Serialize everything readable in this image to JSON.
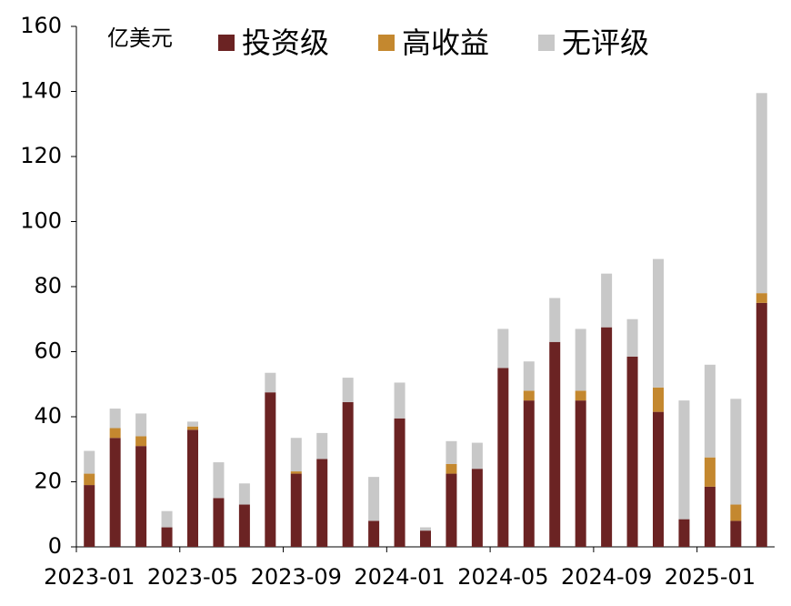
{
  "chart_data": {
    "type": "stacked_bar",
    "y_axis_label": "亿美元",
    "categories": [
      "2023-01",
      null,
      null,
      null,
      "2023-05",
      null,
      null,
      null,
      "2023-09",
      null,
      null,
      null,
      "2024-01",
      null,
      null,
      null,
      "2024-05",
      null,
      null,
      null,
      "2024-09",
      null,
      null,
      null,
      "2025-01",
      null,
      null
    ],
    "series": [
      {
        "name": "投资级",
        "color": "#6b2323",
        "values": [
          19,
          33.5,
          31,
          6,
          36,
          15,
          13,
          47.5,
          22.5,
          27,
          44.5,
          8,
          39.5,
          5,
          22.5,
          24,
          55,
          45,
          63,
          45,
          67.5,
          58.5,
          41.5,
          8.5,
          18.5,
          8,
          75
        ]
      },
      {
        "name": "高收益",
        "color": "#c4882f",
        "values": [
          3.5,
          3,
          3,
          0,
          1,
          0,
          0,
          0,
          0.7,
          0,
          0,
          0,
          0,
          0,
          3,
          0,
          0,
          3,
          0,
          3,
          0,
          0,
          7.5,
          0,
          9,
          5,
          3
        ]
      },
      {
        "name": "无评级",
        "color": "#c8c8c8",
        "values": [
          7,
          6,
          7,
          5,
          1.5,
          11,
          6.5,
          6,
          10.3,
          8,
          7.5,
          13.5,
          11,
          1,
          7,
          8,
          12,
          9,
          13.5,
          19,
          16.5,
          11.5,
          39.5,
          36.5,
          28.5,
          32.5,
          61.5
        ]
      }
    ],
    "ylim": [
      0,
      160
    ],
    "yticks": [
      0,
      20,
      40,
      60,
      80,
      100,
      120,
      140,
      160
    ],
    "legend": "top"
  }
}
